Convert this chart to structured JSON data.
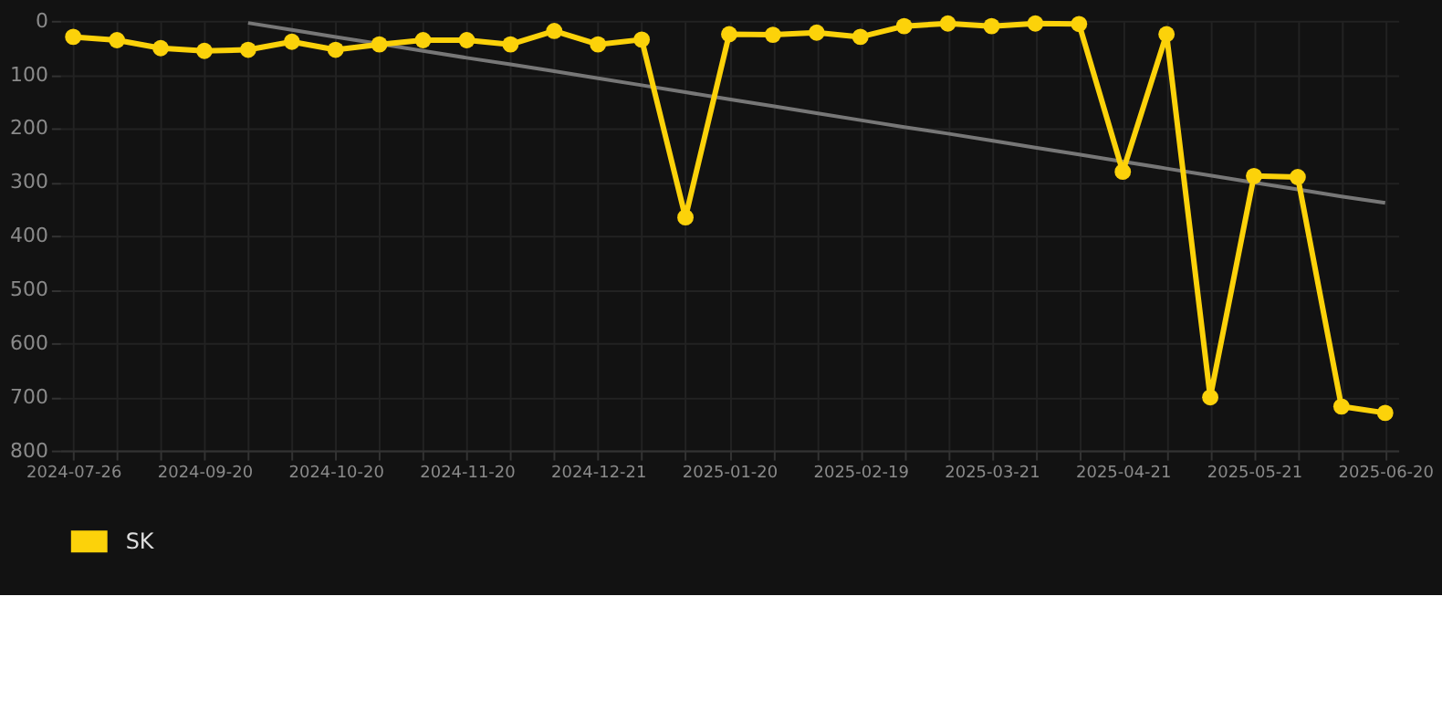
{
  "chart_data": {
    "type": "line",
    "categories": [
      "2024-07-26",
      null,
      null,
      "2024-09-20",
      null,
      null,
      "2024-10-20",
      null,
      null,
      "2024-11-20",
      null,
      null,
      "2024-12-21",
      null,
      null,
      "2025-01-20",
      null,
      null,
      "2025-02-19",
      null,
      null,
      "2025-03-21",
      null,
      null,
      "2025-04-21",
      null,
      null,
      "2025-05-21",
      null,
      null,
      "2025-06-20"
    ],
    "series": [
      {
        "name": "SK",
        "color": "#fcd20a",
        "marker": "circle",
        "values": [
          30,
          36,
          51,
          56,
          54,
          39,
          54,
          44,
          36,
          36,
          44,
          19,
          44,
          35,
          366,
          25,
          26,
          22,
          30,
          10,
          5,
          10,
          5,
          6,
          281,
          25,
          701,
          289,
          291,
          718,
          730
        ]
      },
      {
        "color": "#777777",
        "marker": "none",
        "values": [
          null,
          null,
          null,
          null,
          4,
          17,
          30,
          43,
          56,
          69,
          81,
          94,
          107,
          120,
          133,
          146,
          159,
          172,
          185,
          198,
          210,
          223,
          236,
          249,
          262,
          275,
          288,
          301,
          314,
          327,
          339
        ]
      }
    ],
    "ylim": [
      800,
      0
    ],
    "yticks": [
      0,
      100,
      200,
      300,
      400,
      500,
      600,
      700,
      800
    ],
    "grid": true,
    "legend": "bottom"
  }
}
